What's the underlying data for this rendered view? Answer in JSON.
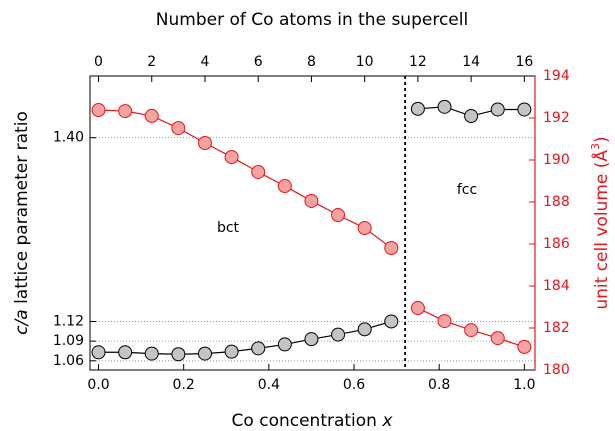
{
  "chart_data": {
    "type": "line",
    "x2label": "Number of Co atoms in the supercell",
    "xlabel": [
      "Co concentration",
      "x"
    ],
    "ylabel": [
      "c/a",
      "lattice parameter ratio"
    ],
    "y2label": [
      "unit cell volume (Å",
      "3",
      ")"
    ],
    "annotations": [
      "bct",
      "fcc"
    ],
    "xlim": [
      -0.02,
      1.025
    ],
    "xticks": [
      {
        "value": 0,
        "label": "0.0"
      },
      0.2,
      0.4,
      0.6,
      0.8,
      {
        "value": 1,
        "label": "1.0"
      }
    ],
    "x2lim": [
      -0.32,
      16.4
    ],
    "x2ticks": [
      0,
      2,
      4,
      6,
      8,
      10,
      12,
      14,
      16
    ],
    "ylim": [
      1.046,
      1.494
    ],
    "yticks": [
      1.06,
      1.09,
      1.12,
      {
        "value": 1.4,
        "label": "1.40"
      }
    ],
    "y2lim": [
      180,
      194
    ],
    "y2ticks": [
      180,
      182,
      184,
      186,
      188,
      190,
      192,
      194
    ],
    "grid": true,
    "vline_x": 0.72,
    "series": [
      {
        "axis": "y",
        "color": "#000000",
        "fill": "#c4c4c4",
        "x": [
          0,
          0.0625,
          0.125,
          0.1875,
          0.25,
          0.3125,
          0.375,
          0.4375,
          0.5,
          0.5625,
          0.625,
          0.6875
        ],
        "values": [
          1.073,
          1.073,
          1.071,
          1.07,
          1.071,
          1.074,
          1.079,
          1.085,
          1.093,
          1.1,
          1.108,
          1.12
        ]
      },
      {
        "axis": "y",
        "color": "#000000",
        "fill": "#c4c4c4",
        "x": [
          0.75,
          0.8125,
          0.875,
          0.9375,
          1
        ],
        "values": [
          1.444,
          1.447,
          1.433,
          1.443,
          1.443
        ]
      },
      {
        "axis": "y2",
        "color": "#e8141a",
        "fill": "#f4a3a3",
        "x": [
          0,
          0.0625,
          0.125,
          0.1875,
          0.25,
          0.3125,
          0.375,
          0.4375,
          0.5,
          0.5625,
          0.625,
          0.6875
        ],
        "values": [
          192.38,
          192.33,
          192.1,
          191.52,
          190.81,
          190.14,
          189.43,
          188.76,
          188.05,
          187.38,
          186.76,
          185.81
        ]
      },
      {
        "axis": "y2",
        "color": "#e8141a",
        "fill": "#f4a3a3",
        "x": [
          0.75,
          0.8125,
          0.875,
          0.9375,
          1
        ],
        "values": [
          182.95,
          182.33,
          181.9,
          181.52,
          181.1
        ]
      }
    ]
  }
}
